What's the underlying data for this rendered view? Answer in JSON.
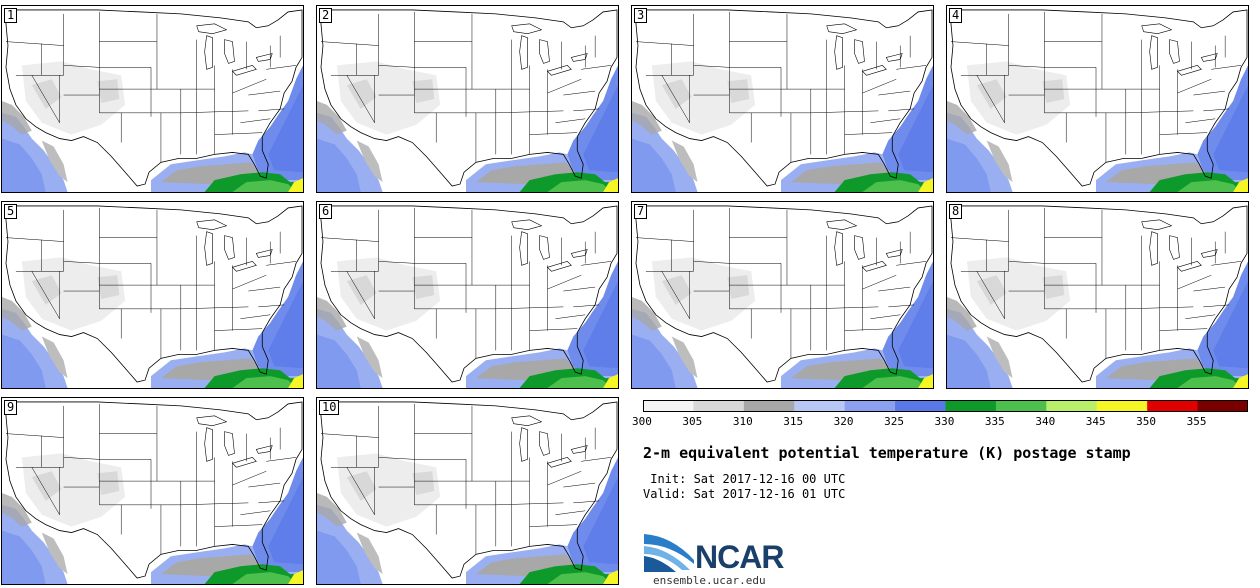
{
  "panels": [
    {
      "num": "1"
    },
    {
      "num": "2"
    },
    {
      "num": "3"
    },
    {
      "num": "4"
    },
    {
      "num": "5"
    },
    {
      "num": "6"
    },
    {
      "num": "7"
    },
    {
      "num": "8"
    },
    {
      "num": "9"
    },
    {
      "num": "10"
    }
  ],
  "colorbar": {
    "levels": [
      "300",
      "305",
      "310",
      "315",
      "320",
      "325",
      "330",
      "335",
      "340",
      "345",
      "350",
      "355"
    ],
    "colors": [
      "#f4f4f4",
      "#d8d8d8",
      "#a8a8a8",
      "#b8c8f4",
      "#8ca0f0",
      "#5a78e8",
      "#0e9a2a",
      "#4cbf4c",
      "#b8f06a",
      "#f6f626",
      "#e00000",
      "#7a0000"
    ]
  },
  "map_colors": {
    "land": "#ffffff",
    "land_gray": "#e6e6e6",
    "ocean_light": "#9aaef2",
    "ocean_mid": "#6f8cec",
    "gulf_gray": "#a8a8a8",
    "gulf_green": "#0e9a2a",
    "gulf_green_light": "#4cbf4c",
    "gulf_yellow": "#f6f626"
  },
  "title": "2-m equivalent potential temperature (K) postage stamp",
  "init": " Init: Sat 2017-12-16 00 UTC",
  "valid": "Valid: Sat 2017-12-16 01 UTC",
  "logo_text": "NCAR",
  "logo_url": "ensemble.ucar.edu"
}
